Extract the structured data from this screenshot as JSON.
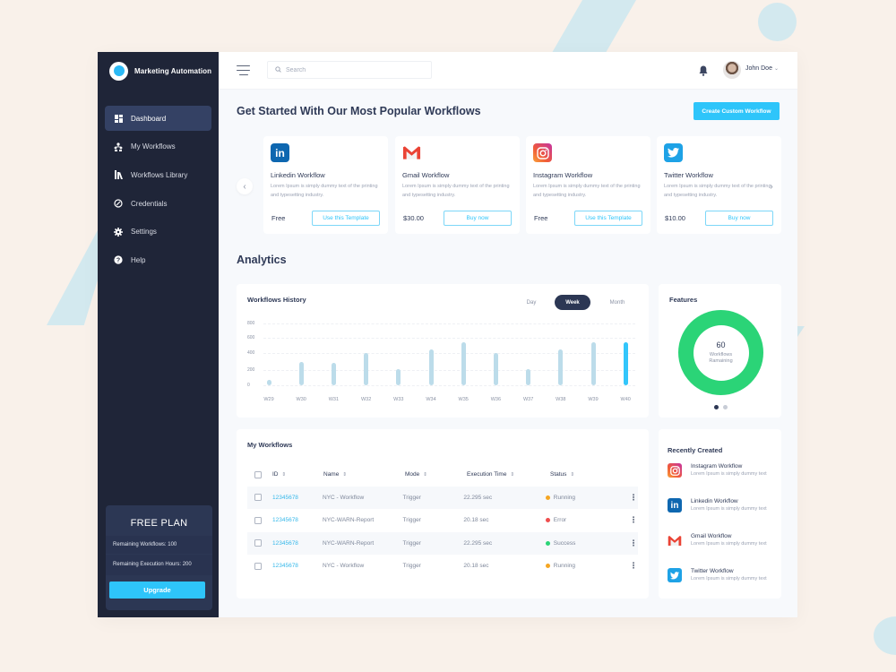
{
  "app": {
    "brand_name": "Marketing Automation"
  },
  "sidebar": {
    "items": [
      {
        "label": "Dashboard",
        "icon": "dashboard-icon",
        "active": true
      },
      {
        "label": "My Workflows",
        "icon": "workflow-icon",
        "active": false
      },
      {
        "label": "Workflows Library",
        "icon": "library-icon",
        "active": false
      },
      {
        "label": "Credentials",
        "icon": "credentials-icon",
        "active": false
      },
      {
        "label": "Settings",
        "icon": "gear-icon",
        "active": false
      },
      {
        "label": "Help",
        "icon": "help-icon",
        "active": false
      }
    ],
    "plan": {
      "title": "FREE PLAN",
      "remaining_workflows": "Remaining Workflows:  100",
      "remaining_hours": "Remaining Execution Hours:  200",
      "upgrade_label": "Upgrade"
    }
  },
  "topbar": {
    "search_placeholder": "Search",
    "user_name": "John Doe"
  },
  "popular": {
    "title": "Get Started With Our Most Popular Workflows",
    "cta_label": "Create Custom Workflow",
    "cards": [
      {
        "title": "Linkedin Workflow",
        "desc": "Lorem Ipsum is simply dummy text of the printing and typesetting industry.",
        "price": "Free",
        "button": "Use this Template",
        "icon": "linkedin-icon"
      },
      {
        "title": "Gmail Workflow",
        "desc": "Lorem Ipsum is simply dummy text of the printing and typesetting industry.",
        "price": "$30.00",
        "button": "Buy now",
        "icon": "gmail-icon"
      },
      {
        "title": "Instagram Workflow",
        "desc": "Lorem Ipsum is simply dummy text of the printing and typesetting industry.",
        "price": "Free",
        "button": "Use this Template",
        "icon": "instagram-icon"
      },
      {
        "title": "Twitter Workflow",
        "desc": "Lorem Ipsum is simply dummy text of the printing and typesetting industry.",
        "price": "$10.00",
        "button": "Buy now",
        "icon": "twitter-icon"
      }
    ]
  },
  "analytics": {
    "title": "Analytics",
    "history": {
      "title": "Workflows History",
      "ranges": [
        "Day",
        "Week",
        "Month"
      ],
      "selected_range": "Week"
    },
    "features": {
      "title": "Features",
      "value": "60",
      "label_line1": "Workflows",
      "label_line2": "Ramaining",
      "color": "#2bd477"
    }
  },
  "chart_data": {
    "type": "bar",
    "title": "Workflows History",
    "categories": [
      "W29",
      "W30",
      "W31",
      "W32",
      "W33",
      "W34",
      "W35",
      "W36",
      "W37",
      "W38",
      "W39",
      "W40"
    ],
    "values": [
      70,
      300,
      280,
      400,
      210,
      450,
      540,
      400,
      210,
      450,
      540,
      540
    ],
    "yticks": [
      "800",
      "600",
      "400",
      "200",
      "0"
    ],
    "ylim": [
      0,
      800
    ],
    "xlabel": "",
    "ylabel": "",
    "grid": true,
    "highlight_index": 11,
    "bar_color": "#bcdcea",
    "highlight_color": "#33c6fb"
  },
  "my_workflows": {
    "title": "My Workflows",
    "columns": [
      "ID",
      "Name",
      "Mode",
      "Execution Time",
      "Status"
    ],
    "rows": [
      {
        "id": "12345678",
        "name": "NYC - Workflow",
        "mode": "Trigger",
        "exec": "22.295 sec",
        "status": "Running",
        "status_color": "#f5a623"
      },
      {
        "id": "12345678",
        "name": "NYC-WARN-Report",
        "mode": "Trigger",
        "exec": "20.18 sec",
        "status": "Error",
        "status_color": "#ef4e4e"
      },
      {
        "id": "12345678",
        "name": "NYC-WARN-Report",
        "mode": "Trigger",
        "exec": "22.295 sec",
        "status": "Success",
        "status_color": "#2bd477"
      },
      {
        "id": "12345678",
        "name": "NYC - Workflow",
        "mode": "Trigger",
        "exec": "20.18 sec",
        "status": "Running",
        "status_color": "#f5a623"
      }
    ]
  },
  "recent": {
    "title": "Recently Created",
    "items": [
      {
        "title": "Instagram Workflow",
        "desc": "Lorem Ipsum is simply dummy text",
        "icon": "instagram-icon"
      },
      {
        "title": "Linkedin Workflow",
        "desc": "Lorem Ipsum is simply dummy text",
        "icon": "linkedin-icon"
      },
      {
        "title": "Gmail Workflow",
        "desc": "Lorem Ipsum is simply dummy text",
        "icon": "gmail-icon"
      },
      {
        "title": "Twitter Workflow",
        "desc": "Lorem Ipsum is simply dummy text",
        "icon": "twitter-icon"
      }
    ]
  }
}
